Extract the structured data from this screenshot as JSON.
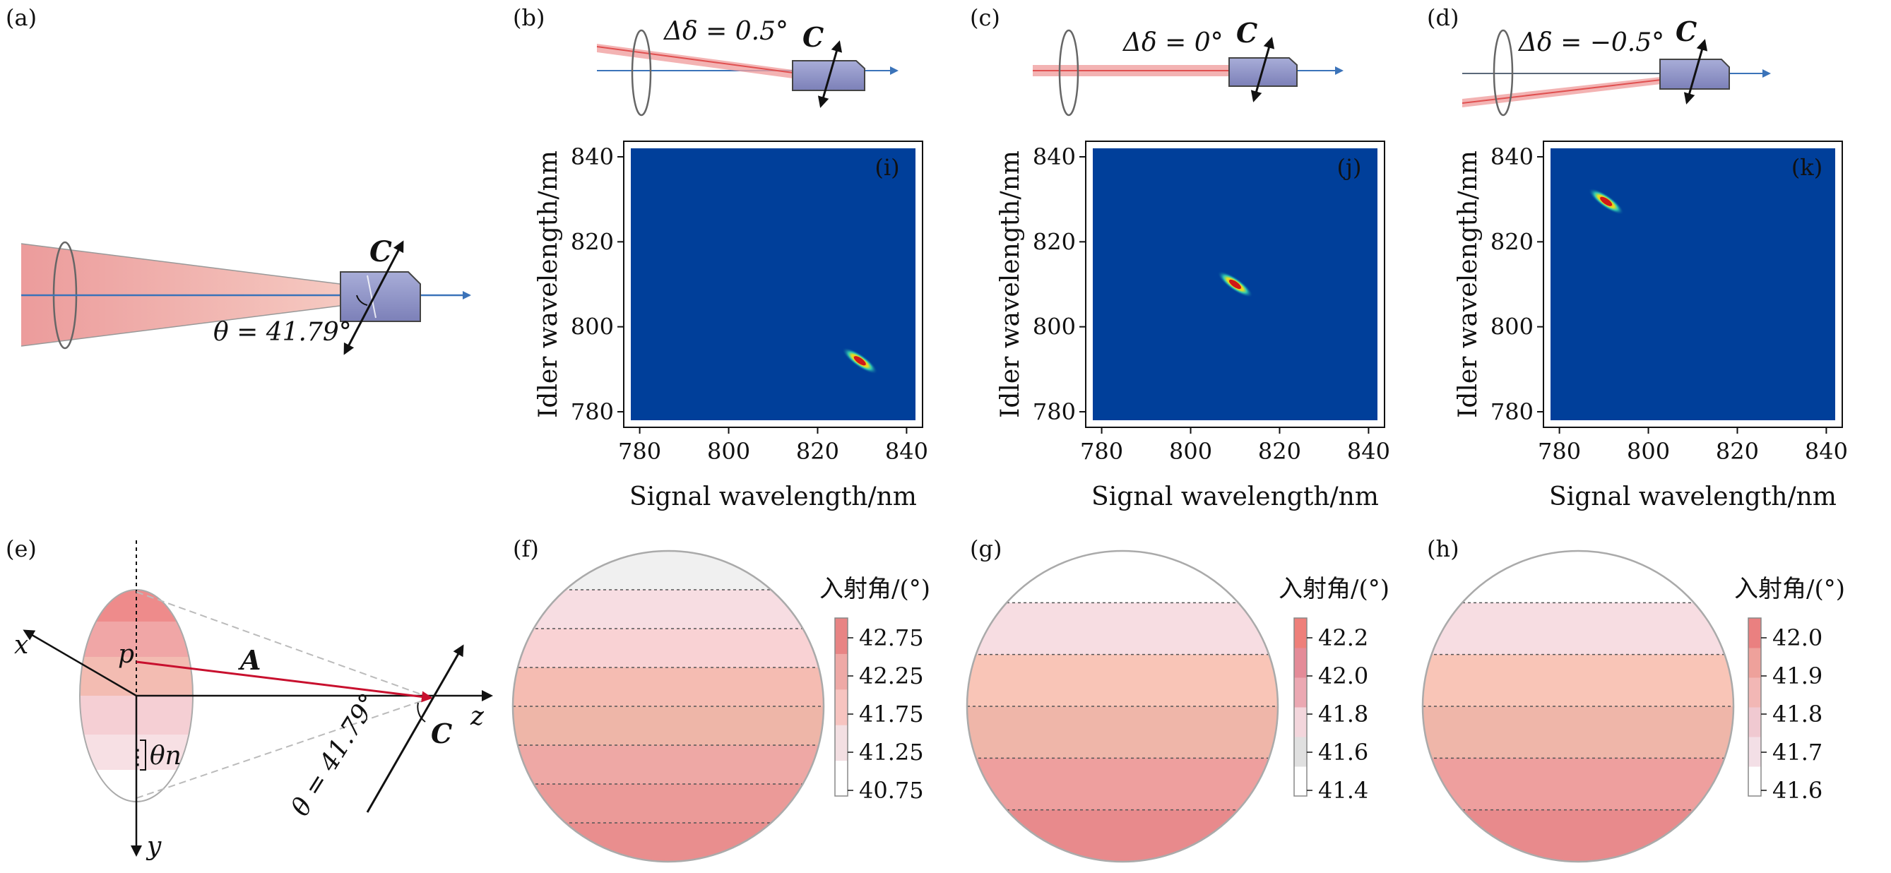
{
  "panel_labels": {
    "a": "(a)",
    "b": "(b)",
    "c": "(c)",
    "d": "(d)",
    "e": "(e)",
    "f": "(f)",
    "g": "(g)",
    "h": "(h)"
  },
  "diagram_a": {
    "theta_label": "θ = 41.79°",
    "axis_label": "C"
  },
  "diagram_b": {
    "delta_label": "Δδ = 0.5°",
    "axis_label": "C"
  },
  "diagram_c": {
    "delta_label": "Δδ = 0°",
    "axis_label": "C"
  },
  "diagram_d": {
    "delta_label": "Δδ = −0.5°",
    "axis_label": "C"
  },
  "diagram_e": {
    "x_label": "x",
    "y_label": "y",
    "z_label": "z",
    "p_label": "p",
    "vector_label": "A",
    "axis_label": "C",
    "theta_label": "θ = 41.79°",
    "theta_n_label": "θn",
    "dots_label": "⋮"
  },
  "colors": {
    "plot_bg": "#003f9a",
    "crystal": "#8f93c8",
    "beam": "#f0a6a6",
    "arrow_blue": "#3b73b9",
    "vector_red": "#c8102e"
  },
  "chart_data": [
    {
      "type": "heatmap",
      "panel_label": "(i)",
      "xlabel": "Signal wavelength/nm",
      "ylabel": "Idler wavelength/nm",
      "xlim": [
        778,
        842
      ],
      "ylim": [
        778,
        842
      ],
      "xticks": [
        "780",
        "800",
        "820",
        "840"
      ],
      "yticks": [
        "780",
        "800",
        "820",
        "840"
      ],
      "peak": {
        "x": 829.5,
        "y": 792
      }
    },
    {
      "type": "heatmap",
      "panel_label": "(j)",
      "xlabel": "Signal wavelength/nm",
      "ylabel": "Idler wavelength/nm",
      "xlim": [
        778,
        842
      ],
      "ylim": [
        778,
        842
      ],
      "xticks": [
        "780",
        "800",
        "820",
        "840"
      ],
      "yticks": [
        "780",
        "800",
        "820",
        "840"
      ],
      "peak": {
        "x": 810,
        "y": 810
      }
    },
    {
      "type": "heatmap",
      "panel_label": "(k)",
      "xlabel": "Signal wavelength/nm",
      "ylabel": "Idler wavelength/nm",
      "xlim": [
        778,
        842
      ],
      "ylim": [
        778,
        842
      ],
      "xticks": [
        "780",
        "800",
        "820",
        "840"
      ],
      "yticks": [
        "780",
        "800",
        "820",
        "840"
      ],
      "peak": {
        "x": 790.5,
        "y": 829.5
      }
    },
    {
      "type": "heatmap",
      "title": "入射角/(°)",
      "bands": [
        "#f0f0f0",
        "#f7dde2",
        "#f9d2d4",
        "#f5bcb2",
        "#eeb6a8",
        "#eea8a5",
        "#eb9a98",
        "#e98e8e"
      ],
      "colorbar": {
        "ticks": [
          "42.75",
          "42.25",
          "41.75",
          "41.25",
          "40.75"
        ],
        "colors": [
          "#ffffff",
          "#f3dfe2",
          "#f7c4c0",
          "#eea9a6",
          "#e88484"
        ]
      }
    },
    {
      "type": "heatmap",
      "title": "入射角/(°)",
      "bands": [
        "#ffffff",
        "#f7dde2",
        "#f9c5b7",
        "#efb6a9",
        "#ee9f9e",
        "#e88a8c"
      ],
      "colorbar": {
        "ticks": [
          "42.2",
          "42.0",
          "41.8",
          "41.6",
          "41.4"
        ],
        "colors": [
          "#ffffff",
          "#e0e0e0",
          "#f3d6dc",
          "#eba8b2",
          "#e48b98",
          "#ee7f7a"
        ]
      }
    },
    {
      "type": "heatmap",
      "title": "入射角/(°)",
      "bands": [
        "#ffffff",
        "#f7dde2",
        "#f9c5b7",
        "#efb6a9",
        "#ee9f9e",
        "#e88a8c"
      ],
      "colorbar": {
        "ticks": [
          "42.0",
          "41.9",
          "41.8",
          "41.7",
          "41.6"
        ],
        "colors": [
          "#ffffff",
          "#f3dfe6",
          "#f0c9d1",
          "#f2b7b5",
          "#eea19b",
          "#ea8080"
        ]
      }
    }
  ]
}
